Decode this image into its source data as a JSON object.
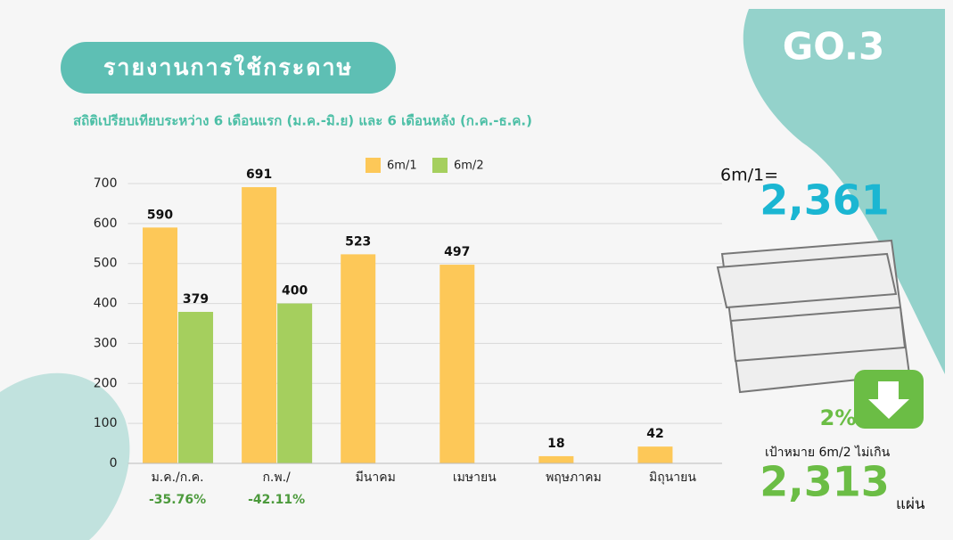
{
  "header": {
    "logo": "GO.3"
  },
  "chart_data": {
    "type": "bar",
    "title": "รายงานการใช้กระดาษ",
    "subtitle": "สถิติเปรียบเทียบระหว่าง 6 เดือนแรก (ม.ค.-มิ.ย) และ 6 เดือนหลัง (ก.ค.-ธ.ค.)",
    "categories": [
      "ม.ค./ก.ค.",
      "ก.พ./",
      "มีนาคม",
      "เมษายน",
      "พฤษภาคม",
      "มิถุนายน"
    ],
    "change_labels": [
      "-35.76%",
      "-42.11%"
    ],
    "series": [
      {
        "name": "6m/1",
        "color": "#fdc858",
        "values": [
          590,
          691,
          523,
          497,
          18,
          42
        ]
      },
      {
        "name": "6m/2",
        "color": "#a5cf5e",
        "values": [
          379,
          400,
          null,
          null,
          null,
          null
        ]
      }
    ],
    "ylim": [
      0,
      700
    ],
    "yticks": [
      0,
      100,
      200,
      300,
      400,
      500,
      600,
      700
    ],
    "grid": true,
    "legend": "top"
  },
  "summary": {
    "label": "6m/1=",
    "total": "2,361",
    "reduction": "2%",
    "target_label": "เป้าหมาย 6m/2 ไม่เกิน",
    "target": "2,313",
    "unit": "แผ่น"
  }
}
